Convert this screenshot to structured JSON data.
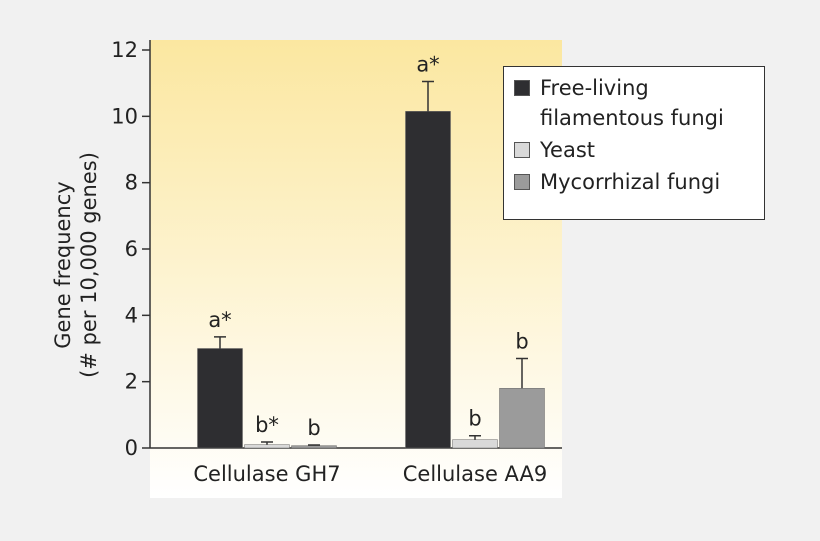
{
  "chart_data": {
    "type": "bar",
    "ylabel": [
      "Gene frequency",
      "(# per 10,000 genes)"
    ],
    "categories": [
      "Cellulase GH7",
      "Cellulase AA9"
    ],
    "series": [
      {
        "name": "Free-living filamentous fungi",
        "color": "#2e2e31",
        "values": [
          3.0,
          10.15
        ],
        "errors": [
          0.35,
          0.9
        ],
        "labels": [
          "a*",
          "a*"
        ]
      },
      {
        "name": "Yeast",
        "color": "#d9d9d9",
        "values": [
          0.1,
          0.25
        ],
        "errors": [
          0.08,
          0.12
        ],
        "labels": [
          "b*",
          "b"
        ]
      },
      {
        "name": "Mycorrhizal fungi",
        "color": "#9b9b9b",
        "values": [
          0.07,
          1.8
        ],
        "errors": [
          0.02,
          0.9
        ],
        "labels": [
          "b",
          "b"
        ]
      }
    ],
    "ylim": [
      0,
      12
    ],
    "yticks": [
      0,
      2,
      4,
      6,
      8,
      10,
      12
    ]
  }
}
